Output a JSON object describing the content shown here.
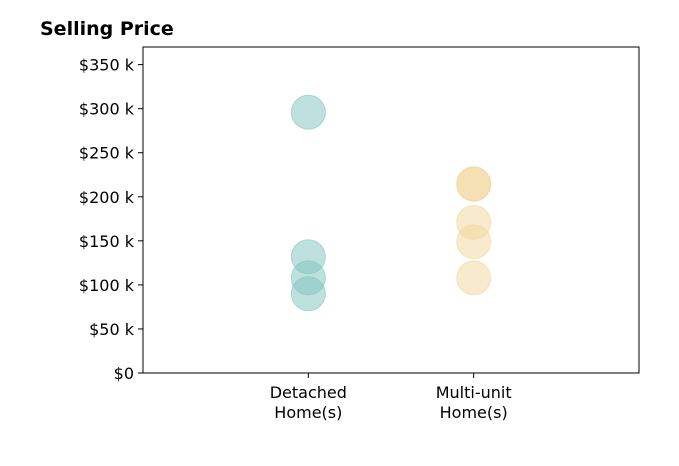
{
  "chart_data": {
    "type": "scatter",
    "title": "Selling Price",
    "xlabel": "",
    "ylabel": "",
    "categories": [
      "Detached\nHome(s)",
      "Multi-unit\nHome(s)"
    ],
    "ylim": [
      0,
      370000
    ],
    "yticks": [
      0,
      50000,
      100000,
      150000,
      200000,
      250000,
      300000,
      350000
    ],
    "ytick_labels": [
      "$0",
      "$50 k",
      "$100 k",
      "$150 k",
      "$200 k",
      "$250 k",
      "$300 k",
      "$350 k"
    ],
    "grid": false,
    "legend": "none",
    "series": [
      {
        "category": "Detached\nHome(s)",
        "color": "#7fc4bd",
        "values": [
          296000,
          132000,
          108000,
          90000
        ]
      },
      {
        "category": "Multi-unit\nHome(s)",
        "color": "#f2d59b",
        "values": [
          215000,
          214000,
          171000,
          149000,
          108000
        ]
      }
    ]
  }
}
